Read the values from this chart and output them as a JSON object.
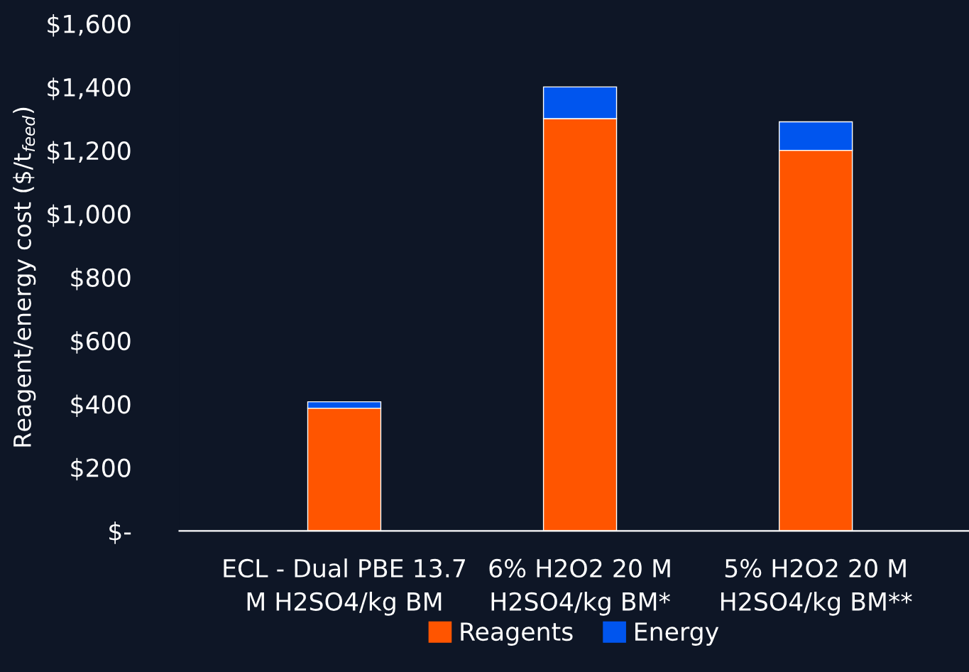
{
  "chart_data": {
    "type": "bar",
    "stacked": true,
    "ylabel": "Reagent/energy cost ($/t$_{feed}$)",
    "categories": [
      "ECL - Dual PBE 13.7\nM H2SO4/kg BM",
      "6% H2O2 20 M\nH2SO4/kg BM*",
      "5% H2O2 20 M\nH2SO4/kg BM**"
    ],
    "series": [
      {
        "name": "Reagents",
        "color": "#ff5500",
        "values": [
          387,
          1300,
          1200
        ]
      },
      {
        "name": "Energy",
        "color": "#0055ee",
        "values": [
          20,
          100,
          90
        ]
      }
    ],
    "ylim": [
      0,
      1600
    ],
    "yticks": [
      {
        "value": 0,
        "label": "$-"
      },
      {
        "value": 200,
        "label": "$200"
      },
      {
        "value": 400,
        "label": "$400"
      },
      {
        "value": 600,
        "label": "$600"
      },
      {
        "value": 800,
        "label": "$800"
      },
      {
        "value": 1000,
        "label": "$1,000"
      },
      {
        "value": 1200,
        "label": "$1,200"
      },
      {
        "value": 1400,
        "label": "$1,400"
      },
      {
        "value": 1600,
        "label": "$1,600"
      }
    ],
    "legend": "bottom",
    "grid": false
  }
}
